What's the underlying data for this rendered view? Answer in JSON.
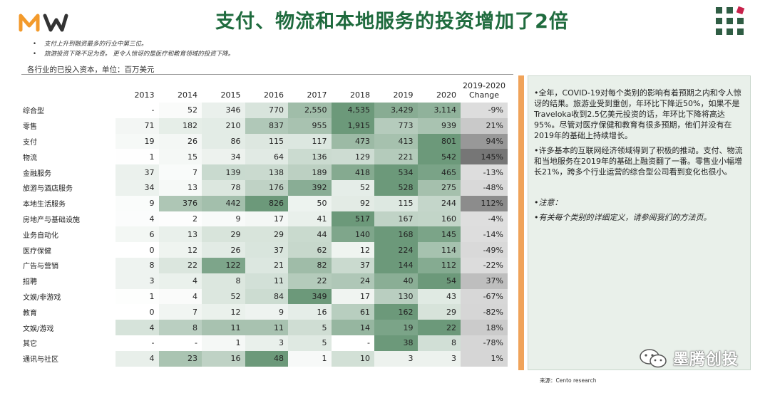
{
  "title": "支付、物流和本地服务的投资增加了2倍",
  "bullets": [
    "支付上升到融资最多的行业中第三位。",
    "旅游投资下降不足为奇。 更令人惊讶的是医疗和教育领域的投资下降。"
  ],
  "unit_note": "各行业的已投入资本，单位：百万美元",
  "table": {
    "headers": [
      "2013",
      "2014",
      "2015",
      "2016",
      "2017",
      "2018",
      "2019",
      "2020"
    ],
    "change_header_line1": "2019-2020",
    "change_header_line2": "Change",
    "rows": [
      {
        "cat": "综合型",
        "vals": [
          "-",
          "52",
          "346",
          "770",
          "2,550",
          "4,535",
          "3,429",
          "3,114"
        ],
        "chg": "-9%"
      },
      {
        "cat": "零售",
        "vals": [
          "71",
          "182",
          "210",
          "837",
          "955",
          "1,915",
          "773",
          "939"
        ],
        "chg": "21%"
      },
      {
        "cat": "支付",
        "vals": [
          "19",
          "26",
          "86",
          "115",
          "117",
          "473",
          "413",
          "801"
        ],
        "chg": "94%"
      },
      {
        "cat": "物流",
        "vals": [
          "1",
          "15",
          "34",
          "64",
          "136",
          "129",
          "221",
          "542"
        ],
        "chg": "145%"
      },
      {
        "cat": "金融服务",
        "vals": [
          "37",
          "7",
          "139",
          "138",
          "189",
          "418",
          "534",
          "465"
        ],
        "chg": "-13%"
      },
      {
        "cat": "旅游与酒店服务",
        "vals": [
          "34",
          "13",
          "78",
          "176",
          "392",
          "52",
          "528",
          "275"
        ],
        "chg": "-48%"
      },
      {
        "cat": "本地生活服务",
        "vals": [
          "9",
          "376",
          "442",
          "826",
          "50",
          "92",
          "115",
          "244"
        ],
        "chg": "112%"
      },
      {
        "cat": "房地产与基础设施",
        "vals": [
          "4",
          "2",
          "9",
          "17",
          "41",
          "517",
          "167",
          "160"
        ],
        "chg": "-4%"
      },
      {
        "cat": "业务自动化",
        "vals": [
          "6",
          "13",
          "29",
          "29",
          "44",
          "140",
          "168",
          "145"
        ],
        "chg": "-14%"
      },
      {
        "cat": "医疗保健",
        "vals": [
          "0",
          "12",
          "26",
          "37",
          "62",
          "12",
          "224",
          "114"
        ],
        "chg": "-49%"
      },
      {
        "cat": "广告与营销",
        "vals": [
          "8",
          "22",
          "122",
          "21",
          "82",
          "37",
          "144",
          "112"
        ],
        "chg": "-22%"
      },
      {
        "cat": "招聘",
        "vals": [
          "3",
          "4",
          "8",
          "11",
          "22",
          "24",
          "40",
          "54"
        ],
        "chg": "37%"
      },
      {
        "cat": "文娱/非游戏",
        "vals": [
          "1",
          "4",
          "52",
          "84",
          "349",
          "17",
          "130",
          "43"
        ],
        "chg": "-67%"
      },
      {
        "cat": "教育",
        "vals": [
          "0",
          "7",
          "12",
          "9",
          "16",
          "61",
          "162",
          "29"
        ],
        "chg": "-82%"
      },
      {
        "cat": "文娱/游戏",
        "vals": [
          "4",
          "8",
          "11",
          "11",
          "5",
          "14",
          "19",
          "22"
        ],
        "chg": "18%"
      },
      {
        "cat": "其它",
        "vals": [
          "-",
          "-",
          "1",
          "3",
          "5",
          "-",
          "38",
          "8"
        ],
        "chg": "-78%"
      },
      {
        "cat": "通讯与社区",
        "vals": [
          "4",
          "23",
          "16",
          "48",
          "1",
          "10",
          "3",
          "3"
        ],
        "chg": "1%"
      }
    ]
  },
  "panel": {
    "p1": "•全年，COVID-19对每个类别的影响有着预期之内和令人惊讶的结果。旅游业受到重创，年环比下降近50%，如果不是Traveloka收到2.5亿美元投资的话，年环比下降将高达95%。尽管对医疗保健和教育有很多预期，他们并没有在2019年的基础上持续增长。",
    "p2": "•许多基本的互联网经济领域得到了积极的推动。支付、物流和当地服务在2019年的基础上融资翻了一番。零售业小幅增长21%，跨多个行业运营的综合型公司看到变化也很小。",
    "note_title": "•注意：",
    "note_body": "•有关每个类别的详细定义，请参阅我们的方法页。"
  },
  "source": "来源：Cento research",
  "watermark": "墨腾创投",
  "colors": {
    "title": "#1f6b3e",
    "logo_orange": "#f39a2b",
    "accent_bar": "#f0a35a",
    "panel_bg": "#e9f0ea"
  }
}
